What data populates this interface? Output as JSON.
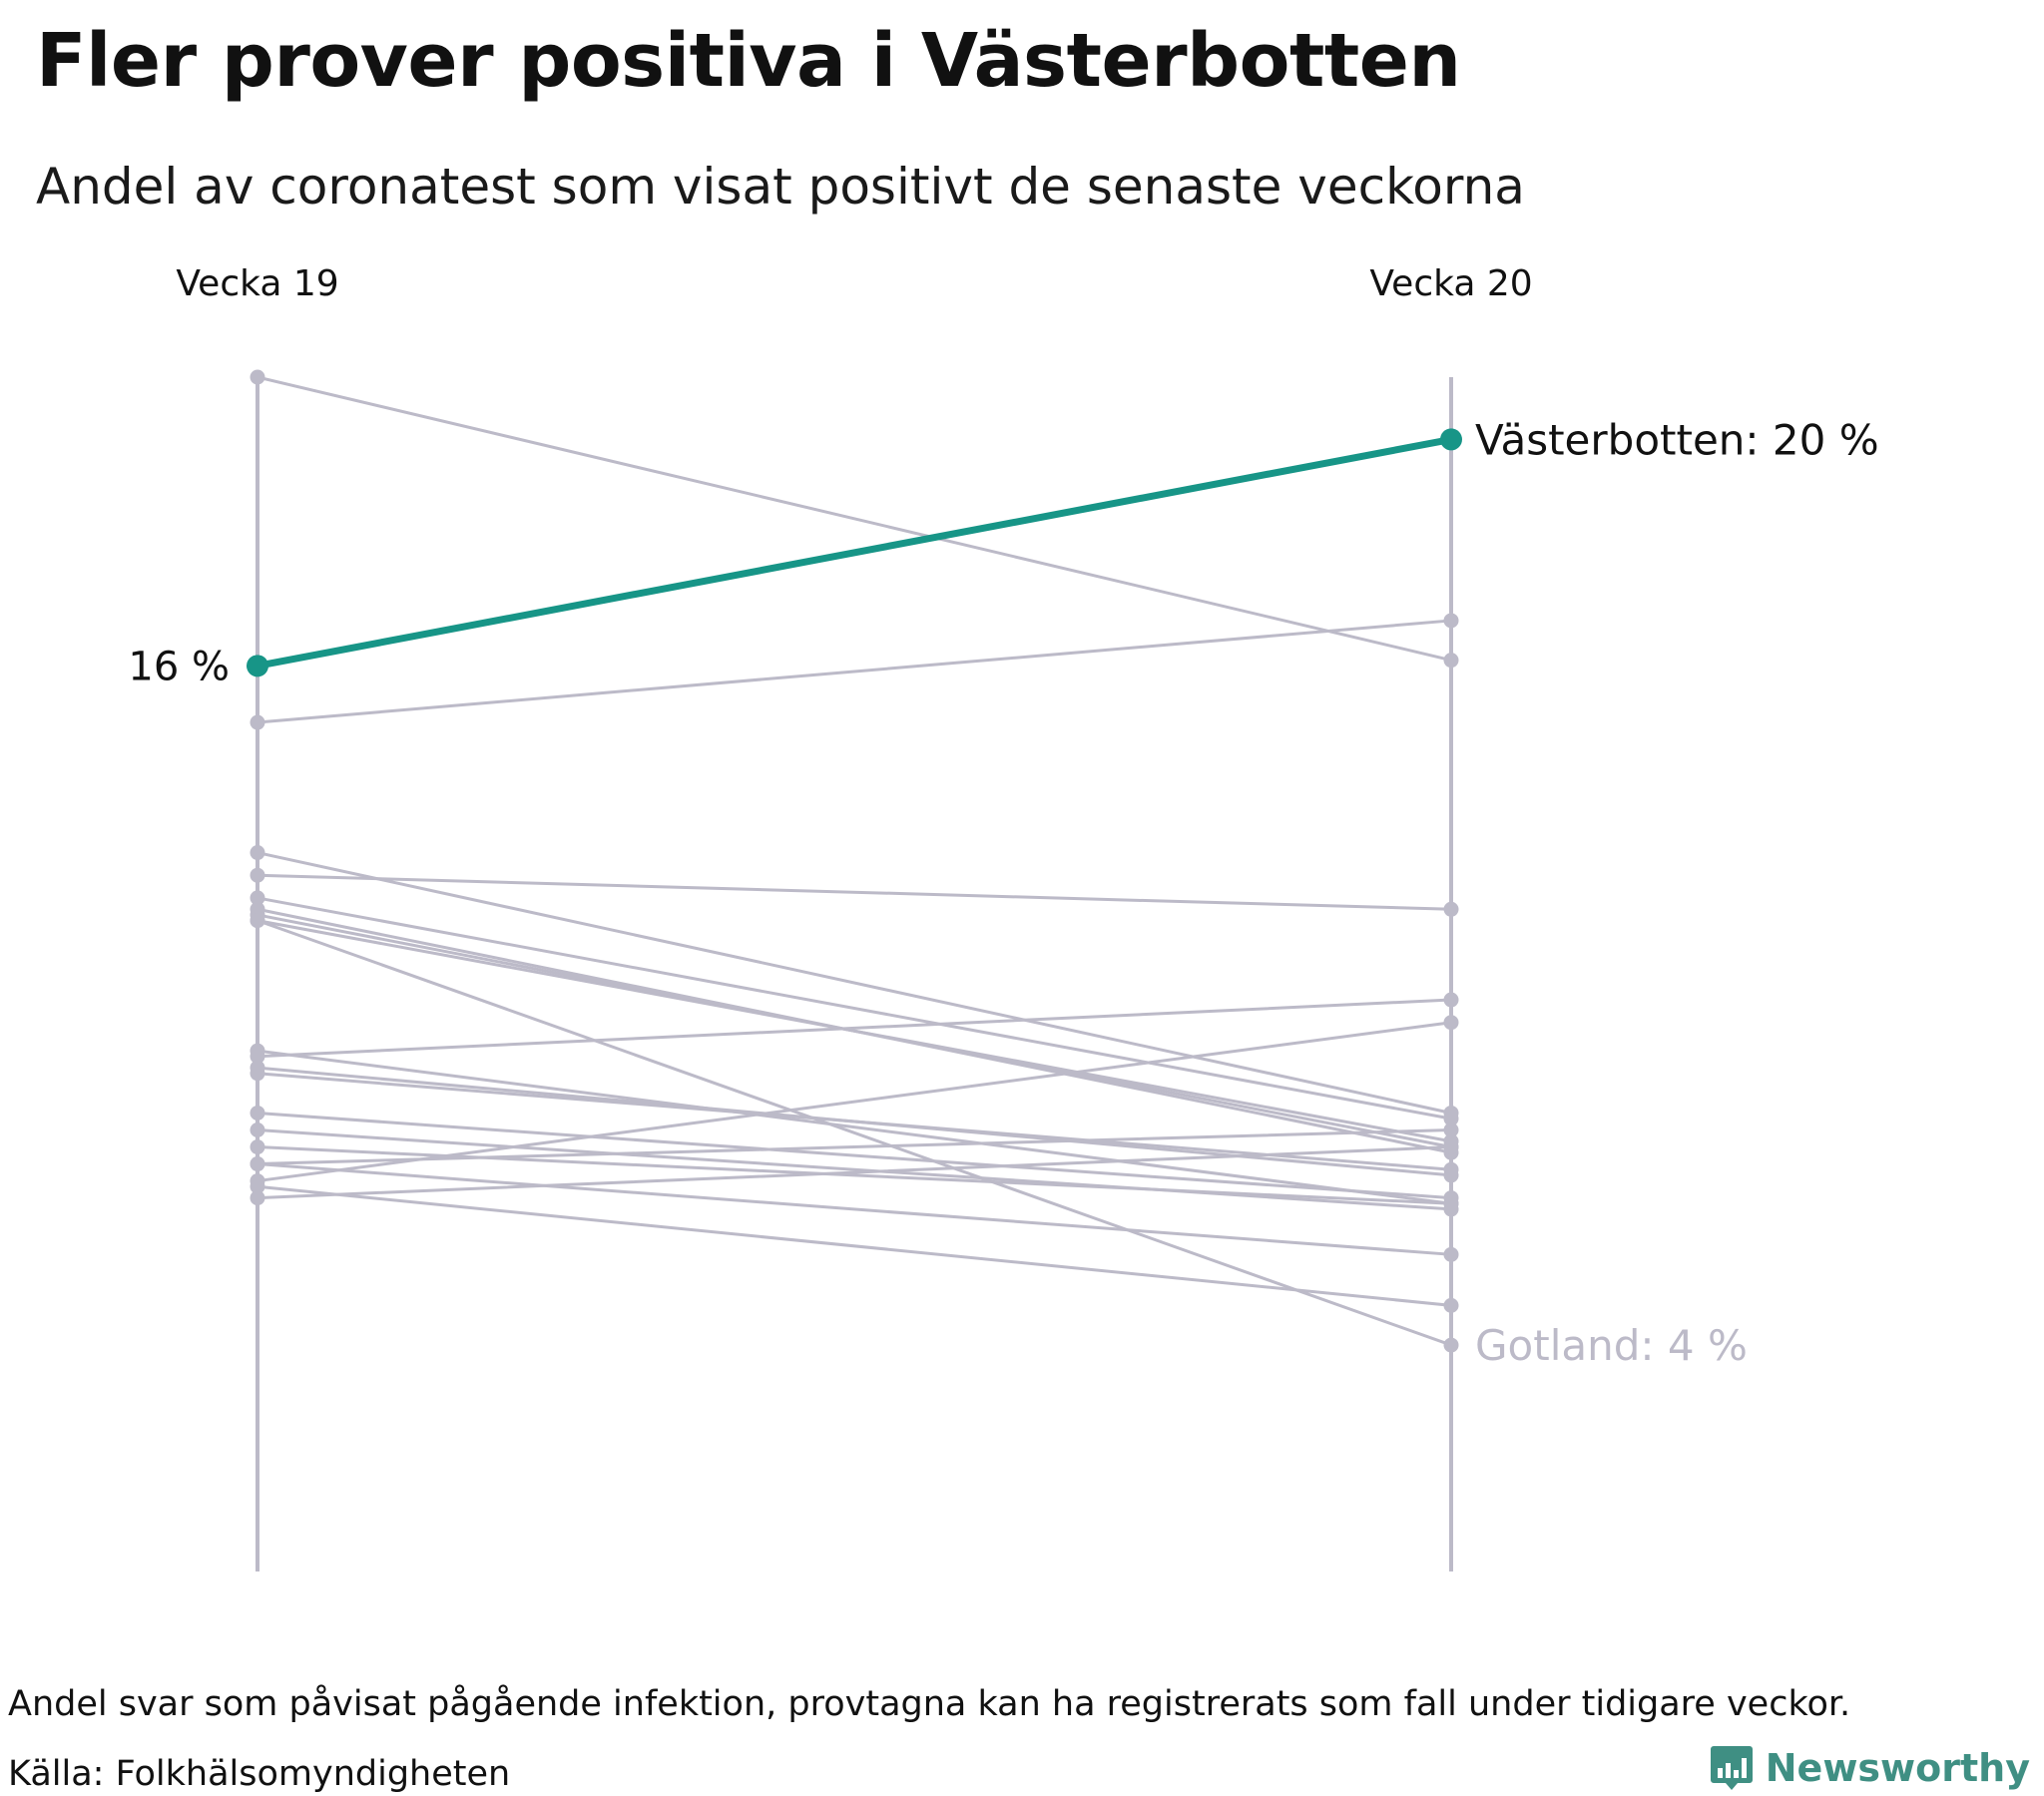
{
  "header": {
    "title": "Fler prover positiva i Västerbotten",
    "subtitle": "Andel av coronatest som visat positivt de senaste veckorna"
  },
  "footer": {
    "note": "Andel svar som påvisat pågående infektion, provtagna kan ha registrerats som fall under tidigare veckor.",
    "source": "Källa: Folkhälsomyndigheten"
  },
  "brand": {
    "name": "Newsworthy",
    "icon": "bar-chart-speech-bubble-icon",
    "color": "#3f8f83"
  },
  "colors": {
    "highlight": "#179587",
    "others": "#bcbac8",
    "axis": "#bcbac8"
  },
  "chart_data": {
    "type": "slope",
    "title": "Fler prover positiva i Västerbotten",
    "subtitle": "Andel av coronatest som visat positivt de senaste veckorna",
    "categories": [
      "Vecka 19",
      "Vecka 20"
    ],
    "unit": "%",
    "ylim": [
      0,
      21.1
    ],
    "highlight": {
      "name": "Västerbotten",
      "values": [
        16,
        20
      ],
      "start_label": "16 %",
      "end_label": "Västerbotten: 20 %"
    },
    "annotated": {
      "name": "Gotland",
      "values": [
        11.5,
        4
      ],
      "end_label": "Gotland: 4 %"
    },
    "series": [
      {
        "values": [
          21.1,
          16.1
        ]
      },
      {
        "values": [
          15.0,
          16.8
        ]
      },
      {
        "values": [
          12.7,
          8.1
        ]
      },
      {
        "values": [
          12.3,
          11.7
        ]
      },
      {
        "values": [
          11.9,
          8.0
        ]
      },
      {
        "values": [
          11.7,
          7.4
        ]
      },
      {
        "values": [
          11.6,
          7.5
        ]
      },
      {
        "values": [
          11.5,
          7.6
        ]
      },
      {
        "values": [
          9.1,
          10.1
        ]
      },
      {
        "values": [
          9.2,
          6.5
        ]
      },
      {
        "values": [
          8.9,
          7.0
        ]
      },
      {
        "values": [
          8.8,
          7.1
        ]
      },
      {
        "values": [
          8.1,
          6.6
        ]
      },
      {
        "values": [
          7.8,
          6.4
        ]
      },
      {
        "values": [
          7.5,
          6.5
        ]
      },
      {
        "values": [
          7.2,
          7.8
        ]
      },
      {
        "values": [
          7.2,
          5.6
        ]
      },
      {
        "values": [
          6.9,
          9.7
        ]
      },
      {
        "values": [
          6.8,
          4.7
        ]
      },
      {
        "values": [
          6.6,
          7.5
        ]
      }
    ]
  }
}
